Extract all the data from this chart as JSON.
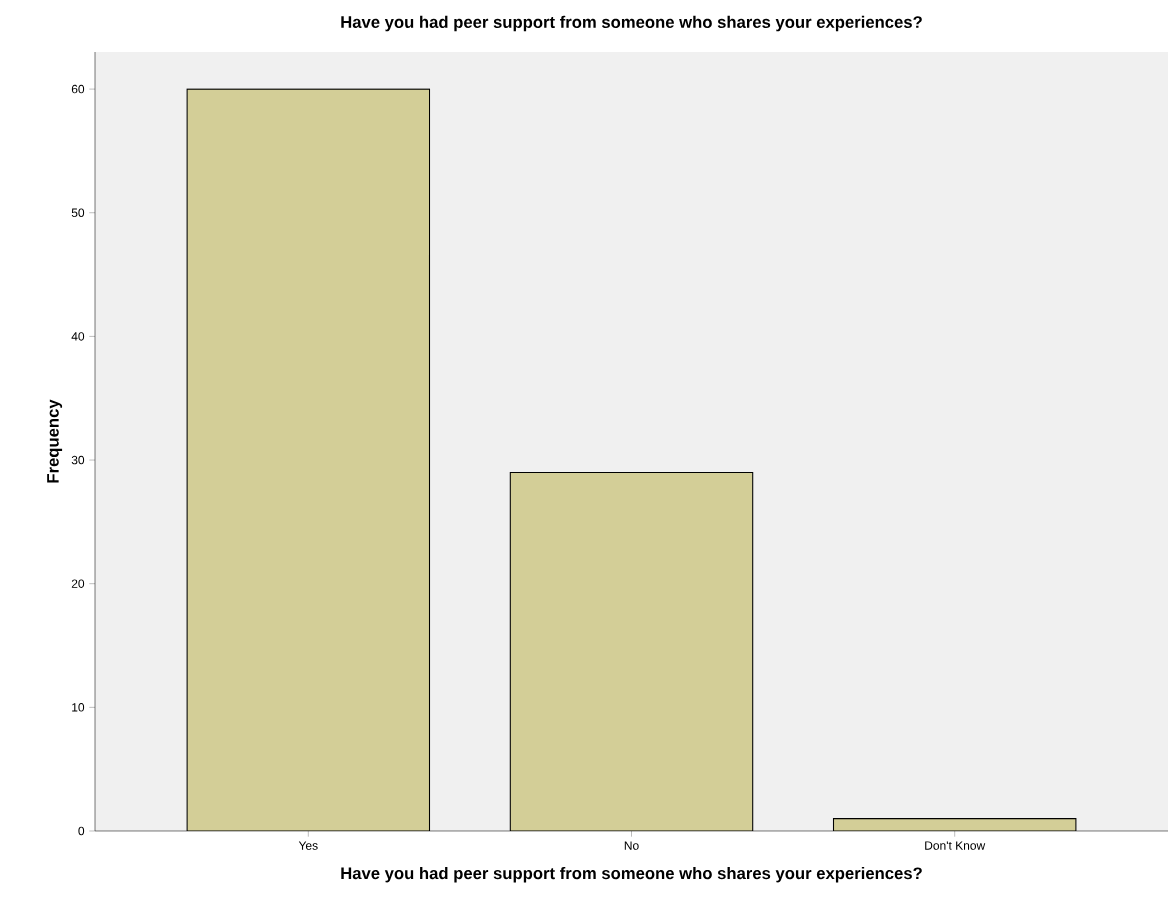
{
  "chart_data": {
    "type": "bar",
    "title": "Have you had peer support from someone who shares your experiences?",
    "xlabel": "Have you had peer support from someone who shares your experiences?",
    "ylabel": "Frequency",
    "categories": [
      "Yes",
      "No",
      "Don't Know"
    ],
    "values": [
      60,
      29,
      1
    ],
    "color": "#d3ce97",
    "ylim": [
      0,
      63
    ],
    "yticks": [
      0,
      10,
      20,
      30,
      40,
      50,
      60
    ]
  }
}
